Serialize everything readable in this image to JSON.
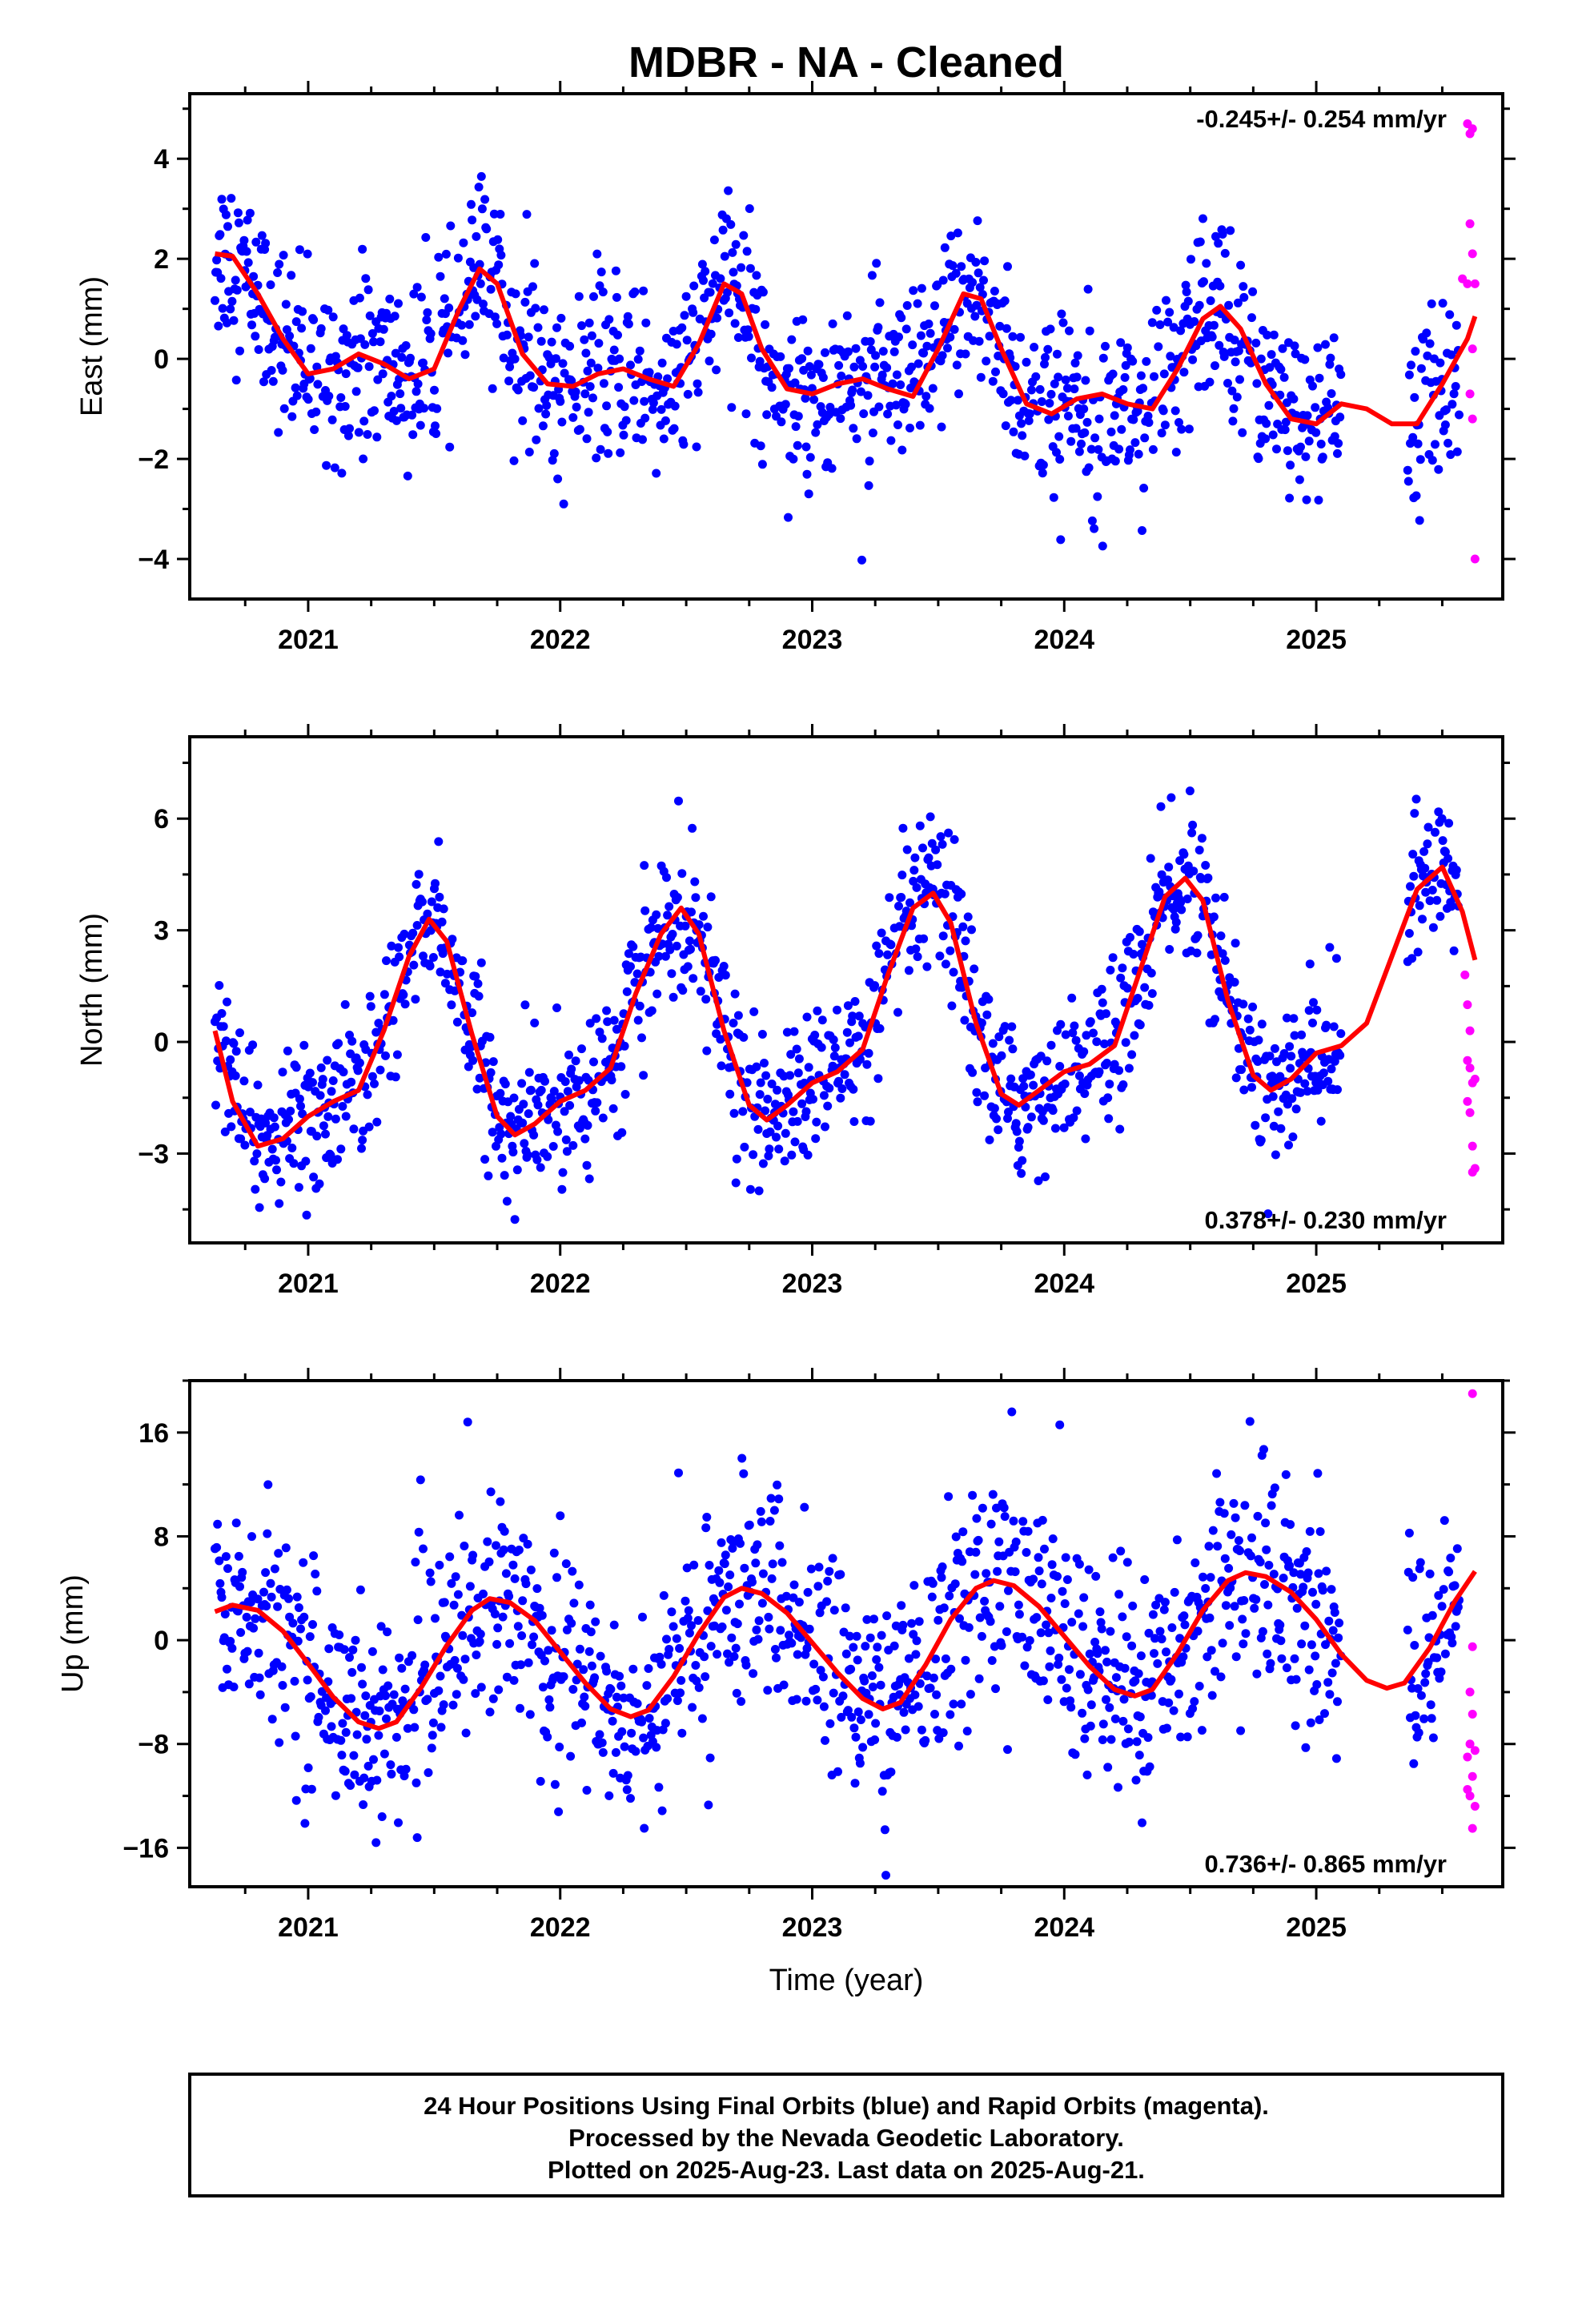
{
  "title": "MDBR  - NA - Cleaned",
  "xlabel": "Time (year)",
  "colors": {
    "final": "#0000ff",
    "rapid": "#ff00ff",
    "fit": "#ff0000"
  },
  "footer": {
    "line1": "24 Hour Positions Using Final Orbits (blue) and Rapid Orbits (magenta).",
    "line2": "Processed by the Nevada Geodetic Laboratory.",
    "line3": "Plotted on 2025-Aug-23. Last data on 2025-Aug-21."
  },
  "chart_data": [
    {
      "type": "scatter",
      "ylabel": "East (mm)",
      "rate": "-0.245+/- 0.254 mm/yr",
      "xlim": [
        2020.53,
        2025.74
      ],
      "ylim": [
        -4.8,
        5.3
      ],
      "yticks": [
        -4,
        -2,
        0,
        2,
        4
      ],
      "xticks": [
        "2021",
        "2022",
        "2023",
        "2024",
        "2025"
      ],
      "series": [
        {
          "role": "fit",
          "points": [
            [
              2020.63,
              2.1
            ],
            [
              2020.7,
              2.05
            ],
            [
              2020.8,
              1.3
            ],
            [
              2020.9,
              0.4
            ],
            [
              2021.0,
              -0.3
            ],
            [
              2021.1,
              -0.2
            ],
            [
              2021.2,
              0.1
            ],
            [
              2021.3,
              -0.1
            ],
            [
              2021.4,
              -0.4
            ],
            [
              2021.5,
              -0.2
            ],
            [
              2021.6,
              1.0
            ],
            [
              2021.68,
              1.8
            ],
            [
              2021.75,
              1.5
            ],
            [
              2021.85,
              0.1
            ],
            [
              2021.95,
              -0.5
            ],
            [
              2022.05,
              -0.55
            ],
            [
              2022.15,
              -0.3
            ],
            [
              2022.25,
              -0.2
            ],
            [
              2022.35,
              -0.4
            ],
            [
              2022.45,
              -0.55
            ],
            [
              2022.55,
              0.3
            ],
            [
              2022.65,
              1.5
            ],
            [
              2022.72,
              1.3
            ],
            [
              2022.8,
              0.2
            ],
            [
              2022.9,
              -0.6
            ],
            [
              2023.0,
              -0.7
            ],
            [
              2023.1,
              -0.5
            ],
            [
              2023.2,
              -0.4
            ],
            [
              2023.3,
              -0.6
            ],
            [
              2023.4,
              -0.75
            ],
            [
              2023.5,
              0.2
            ],
            [
              2023.6,
              1.3
            ],
            [
              2023.67,
              1.2
            ],
            [
              2023.75,
              0.2
            ],
            [
              2023.85,
              -0.9
            ],
            [
              2023.95,
              -1.1
            ],
            [
              2024.05,
              -0.8
            ],
            [
              2024.15,
              -0.7
            ],
            [
              2024.25,
              -0.9
            ],
            [
              2024.35,
              -1.0
            ],
            [
              2024.45,
              -0.2
            ],
            [
              2024.55,
              0.8
            ],
            [
              2024.62,
              1.05
            ],
            [
              2024.7,
              0.6
            ],
            [
              2024.8,
              -0.5
            ],
            [
              2024.9,
              -1.2
            ],
            [
              2025.0,
              -1.3
            ],
            [
              2025.1,
              -0.9
            ],
            [
              2025.2,
              -1.0
            ],
            [
              2025.3,
              -1.3
            ],
            [
              2025.4,
              -1.3
            ],
            [
              2025.5,
              -0.5
            ],
            [
              2025.6,
              0.4
            ],
            [
              2025.63,
              0.85
            ]
          ]
        },
        {
          "role": "rapid",
          "points": [
            [
              2025.6,
              4.7
            ],
            [
              2025.61,
              4.5
            ],
            [
              2025.62,
              4.6
            ],
            [
              2025.6,
              1.5
            ],
            [
              2025.61,
              2.7
            ],
            [
              2025.62,
              2.1
            ],
            [
              2025.63,
              1.5
            ],
            [
              2025.62,
              0.2
            ],
            [
              2025.61,
              -0.7
            ],
            [
              2025.62,
              -1.2
            ],
            [
              2025.63,
              -4.0
            ],
            [
              2025.58,
              1.6
            ]
          ]
        }
      ]
    },
    {
      "type": "scatter",
      "ylabel": "North (mm)",
      "rate": "0.378+/- 0.230 mm/yr",
      "xlim": [
        2020.53,
        2025.74
      ],
      "ylim": [
        -5.4,
        8.2
      ],
      "yticks": [
        -3,
        0,
        3,
        6
      ],
      "xticks": [
        "2021",
        "2022",
        "2023",
        "2024",
        "2025"
      ],
      "series": [
        {
          "role": "fit",
          "points": [
            [
              2020.63,
              0.3
            ],
            [
              2020.7,
              -1.6
            ],
            [
              2020.8,
              -2.8
            ],
            [
              2020.9,
              -2.6
            ],
            [
              2021.0,
              -2.0
            ],
            [
              2021.1,
              -1.6
            ],
            [
              2021.2,
              -1.3
            ],
            [
              2021.3,
              0.3
            ],
            [
              2021.4,
              2.3
            ],
            [
              2021.48,
              3.3
            ],
            [
              2021.55,
              2.7
            ],
            [
              2021.65,
              0.2
            ],
            [
              2021.75,
              -2.0
            ],
            [
              2021.82,
              -2.5
            ],
            [
              2021.9,
              -2.2
            ],
            [
              2022.0,
              -1.6
            ],
            [
              2022.1,
              -1.3
            ],
            [
              2022.2,
              -0.7
            ],
            [
              2022.3,
              1.3
            ],
            [
              2022.4,
              2.9
            ],
            [
              2022.48,
              3.6
            ],
            [
              2022.55,
              2.9
            ],
            [
              2022.65,
              0.3
            ],
            [
              2022.75,
              -1.7
            ],
            [
              2022.82,
              -2.1
            ],
            [
              2022.9,
              -1.7
            ],
            [
              2023.0,
              -1.1
            ],
            [
              2023.1,
              -0.8
            ],
            [
              2023.2,
              -0.2
            ],
            [
              2023.3,
              1.8
            ],
            [
              2023.4,
              3.6
            ],
            [
              2023.48,
              4.0
            ],
            [
              2023.55,
              3.2
            ],
            [
              2023.65,
              0.5
            ],
            [
              2023.75,
              -1.4
            ],
            [
              2023.82,
              -1.7
            ],
            [
              2023.9,
              -1.3
            ],
            [
              2024.0,
              -0.8
            ],
            [
              2024.1,
              -0.6
            ],
            [
              2024.2,
              -0.1
            ],
            [
              2024.3,
              1.9
            ],
            [
              2024.4,
              3.9
            ],
            [
              2024.48,
              4.4
            ],
            [
              2024.55,
              3.8
            ],
            [
              2024.65,
              1.1
            ],
            [
              2024.75,
              -0.9
            ],
            [
              2024.82,
              -1.3
            ],
            [
              2024.9,
              -1.0
            ],
            [
              2025.0,
              -0.3
            ],
            [
              2025.1,
              -0.1
            ],
            [
              2025.2,
              0.5
            ],
            [
              2025.3,
              2.3
            ],
            [
              2025.4,
              4.1
            ],
            [
              2025.5,
              4.7
            ],
            [
              2025.58,
              3.5
            ],
            [
              2025.63,
              2.2
            ]
          ]
        },
        {
          "role": "rapid",
          "points": [
            [
              2025.6,
              -0.5
            ],
            [
              2025.61,
              -0.7
            ],
            [
              2025.62,
              -1.1
            ],
            [
              2025.6,
              -1.6
            ],
            [
              2025.61,
              -1.9
            ],
            [
              2025.62,
              -2.8
            ],
            [
              2025.63,
              -3.4
            ],
            [
              2025.62,
              -3.5
            ],
            [
              2025.6,
              1.0
            ],
            [
              2025.61,
              0.3
            ],
            [
              2025.59,
              1.8
            ],
            [
              2025.63,
              -1.0
            ]
          ]
        }
      ]
    },
    {
      "type": "scatter",
      "ylabel": "Up (mm)",
      "rate": "0.736+/- 0.865 mm/yr",
      "xlim": [
        2020.53,
        2025.74
      ],
      "ylim": [
        -19,
        20
      ],
      "yticks": [
        -16,
        -8,
        0,
        8,
        16
      ],
      "xticks": [
        "2021",
        "2022",
        "2023",
        "2024",
        "2025"
      ],
      "series": [
        {
          "role": "fit",
          "points": [
            [
              2020.63,
              2.2
            ],
            [
              2020.7,
              2.7
            ],
            [
              2020.8,
              2.3
            ],
            [
              2020.9,
              0.7
            ],
            [
              2021.0,
              -1.8
            ],
            [
              2021.1,
              -4.4
            ],
            [
              2021.2,
              -6.3
            ],
            [
              2021.28,
              -6.8
            ],
            [
              2021.35,
              -6.3
            ],
            [
              2021.45,
              -3.6
            ],
            [
              2021.55,
              -0.4
            ],
            [
              2021.65,
              2.3
            ],
            [
              2021.72,
              3.2
            ],
            [
              2021.8,
              2.9
            ],
            [
              2021.9,
              1.5
            ],
            [
              2022.0,
              -0.9
            ],
            [
              2022.1,
              -3.3
            ],
            [
              2022.2,
              -5.3
            ],
            [
              2022.28,
              -5.9
            ],
            [
              2022.35,
              -5.4
            ],
            [
              2022.45,
              -2.8
            ],
            [
              2022.55,
              0.5
            ],
            [
              2022.65,
              3.3
            ],
            [
              2022.72,
              4.0
            ],
            [
              2022.8,
              3.6
            ],
            [
              2022.9,
              2.1
            ],
            [
              2023.0,
              -0.2
            ],
            [
              2023.1,
              -2.5
            ],
            [
              2023.2,
              -4.5
            ],
            [
              2023.28,
              -5.3
            ],
            [
              2023.35,
              -4.8
            ],
            [
              2023.45,
              -1.9
            ],
            [
              2023.55,
              1.6
            ],
            [
              2023.65,
              4.0
            ],
            [
              2023.72,
              4.6
            ],
            [
              2023.8,
              4.2
            ],
            [
              2023.9,
              2.6
            ],
            [
              2024.0,
              0.3
            ],
            [
              2024.1,
              -2.0
            ],
            [
              2024.2,
              -3.8
            ],
            [
              2024.28,
              -4.3
            ],
            [
              2024.35,
              -3.8
            ],
            [
              2024.45,
              -1.0
            ],
            [
              2024.55,
              2.3
            ],
            [
              2024.65,
              4.6
            ],
            [
              2024.72,
              5.2
            ],
            [
              2024.8,
              4.9
            ],
            [
              2024.9,
              3.7
            ],
            [
              2025.0,
              1.6
            ],
            [
              2025.1,
              -1.1
            ],
            [
              2025.2,
              -3.1
            ],
            [
              2025.28,
              -3.7
            ],
            [
              2025.35,
              -3.3
            ],
            [
              2025.45,
              -0.6
            ],
            [
              2025.55,
              3.0
            ],
            [
              2025.63,
              5.3
            ]
          ]
        },
        {
          "role": "rapid",
          "points": [
            [
              2025.62,
              19.0
            ],
            [
              2025.62,
              -0.5
            ],
            [
              2025.61,
              -4.0
            ],
            [
              2025.62,
              -5.7
            ],
            [
              2025.61,
              -8.0
            ],
            [
              2025.63,
              -8.5
            ],
            [
              2025.6,
              -9.0
            ],
            [
              2025.62,
              -10.5
            ],
            [
              2025.6,
              -11.5
            ],
            [
              2025.61,
              -12.0
            ],
            [
              2025.63,
              -12.8
            ],
            [
              2025.62,
              -14.5
            ]
          ]
        }
      ]
    }
  ]
}
